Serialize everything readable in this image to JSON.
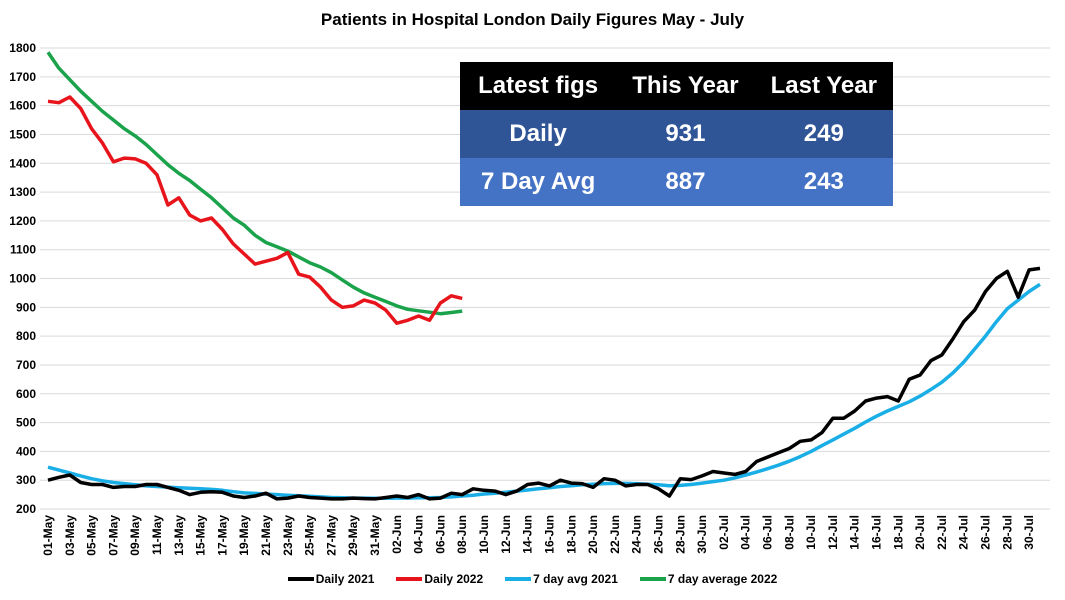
{
  "chart_data": {
    "type": "line",
    "title": "Patients in Hospital  London Daily Figures May - July",
    "xlabel": "",
    "ylabel": "",
    "ylim": [
      200,
      1800
    ],
    "yticks": [
      "200",
      "300",
      "400",
      "500",
      "600",
      "700",
      "800",
      "900",
      "1000",
      "1100",
      "1200",
      "1300",
      "1400",
      "1500",
      "1600",
      "1700",
      "1800"
    ],
    "grid": true,
    "legend_position": "bottom",
    "x_start": "01-May",
    "x_end": "31-Jul",
    "xtick_labels": [
      "01-May",
      "03-May",
      "05-May",
      "07-May",
      "09-May",
      "11-May",
      "13-May",
      "15-May",
      "17-May",
      "19-May",
      "21-May",
      "23-May",
      "25-May",
      "27-May",
      "29-May",
      "31-May",
      "02-Jun",
      "04-Jun",
      "06-Jun",
      "08-Jun",
      "10-Jun",
      "12-Jun",
      "14-Jun",
      "16-Jun",
      "18-Jun",
      "20-Jun",
      "22-Jun",
      "24-Jun",
      "26-Jun",
      "28-Jun",
      "30-Jun",
      "02-Jul",
      "04-Jul",
      "06-Jul",
      "08-Jul",
      "10-Jul",
      "12-Jul",
      "14-Jul",
      "16-Jul",
      "18-Jul",
      "20-Jul",
      "22-Jul",
      "24-Jul",
      "26-Jul",
      "28-Jul",
      "30-Jul"
    ],
    "series": [
      {
        "name": "Daily 2021",
        "color": "#000000",
        "values": [
          300,
          310,
          318,
          292,
          285,
          285,
          275,
          278,
          278,
          285,
          285,
          275,
          265,
          250,
          258,
          260,
          258,
          245,
          240,
          245,
          255,
          235,
          238,
          245,
          240,
          238,
          235,
          235,
          238,
          236,
          235,
          240,
          245,
          240,
          250,
          235,
          238,
          255,
          250,
          270,
          265,
          262,
          250,
          262,
          285,
          290,
          280,
          300,
          290,
          288,
          275,
          305,
          300,
          280,
          285,
          285,
          270,
          245,
          305,
          302,
          315,
          330,
          325,
          320,
          330,
          365,
          380,
          395,
          410,
          435,
          440,
          465,
          515,
          515,
          540,
          575,
          585,
          590,
          575,
          650,
          665,
          715,
          735,
          790,
          850,
          890,
          955,
          1000,
          1025,
          935,
          1030,
          1035
        ]
      },
      {
        "name": "Daily 2022",
        "color": "#e8141b",
        "values": [
          1615,
          1610,
          1630,
          1590,
          1520,
          1470,
          1405,
          1418,
          1415,
          1400,
          1360,
          1255,
          1280,
          1220,
          1200,
          1210,
          1170,
          1120,
          1085,
          1050,
          1060,
          1070,
          1090,
          1015,
          1005,
          970,
          925,
          900,
          905,
          925,
          915,
          890,
          845,
          855,
          870,
          855,
          915,
          940,
          931
        ]
      },
      {
        "name": "7 day avg 2021",
        "color": "#1aaee6",
        "values": [
          345,
          335,
          325,
          315,
          305,
          298,
          292,
          288,
          284,
          280,
          278,
          276,
          274,
          272,
          270,
          268,
          265,
          260,
          256,
          254,
          252,
          250,
          248,
          246,
          244,
          242,
          240,
          239,
          238,
          238,
          237,
          237,
          238,
          238,
          239,
          239,
          240,
          242,
          245,
          248,
          252,
          255,
          258,
          262,
          266,
          270,
          274,
          278,
          281,
          284,
          286,
          288,
          289,
          289,
          288,
          286,
          284,
          281,
          282,
          285,
          290,
          295,
          300,
          308,
          318,
          328,
          340,
          352,
          366,
          382,
          400,
          420,
          440,
          460,
          480,
          502,
          522,
          540,
          556,
          572,
          592,
          615,
          640,
          672,
          710,
          755,
          800,
          850,
          895,
          925,
          955,
          980
        ]
      },
      {
        "name": "7 day average 2022",
        "color": "#1aa34a",
        "values": [
          1785,
          1730,
          1690,
          1650,
          1615,
          1580,
          1550,
          1520,
          1495,
          1465,
          1430,
          1395,
          1365,
          1340,
          1310,
          1280,
          1245,
          1210,
          1185,
          1150,
          1125,
          1110,
          1095,
          1075,
          1055,
          1040,
          1020,
          995,
          970,
          950,
          935,
          920,
          905,
          893,
          888,
          883,
          878,
          882,
          887
        ]
      }
    ]
  },
  "table": {
    "header": [
      "Latest figs",
      "This Year",
      "Last Year"
    ],
    "rows": [
      [
        "Daily",
        "931",
        "249"
      ],
      [
        "7 Day Avg",
        "887",
        "243"
      ]
    ],
    "colors": {
      "header": "#000000",
      "row1": "#2f5597",
      "row2": "#4472c4"
    }
  }
}
